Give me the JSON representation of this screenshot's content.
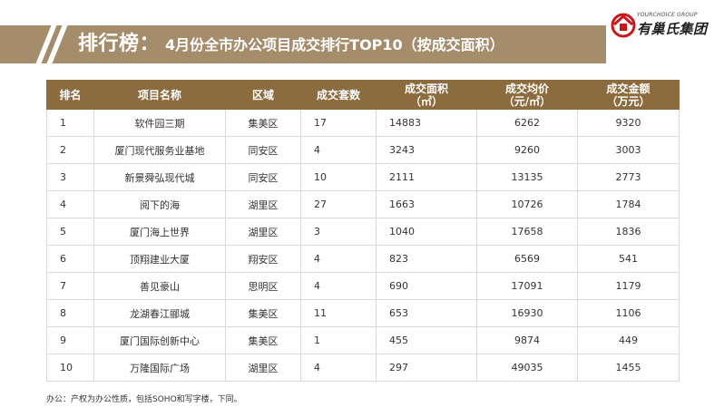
{
  "title": {
    "main": "排行榜：",
    "sub": "4月份全市办公项目成交排行TOP10（按成交面积）"
  },
  "logo": {
    "en": "YOURCHOICE GROUP",
    "cn": "有巢氏集团",
    "icon": "house-logo-icon",
    "color": "#c8181e"
  },
  "colors": {
    "title_bar": "#a58c6b",
    "table_header": "#8c6c3e"
  },
  "table": {
    "headers": [
      {
        "label": "排名"
      },
      {
        "label": "项目名称"
      },
      {
        "label": "区域"
      },
      {
        "label": "成交套数"
      },
      {
        "label": "成交面积",
        "unit": "（㎡）"
      },
      {
        "label": "成交均价",
        "unit": "（元/㎡）"
      },
      {
        "label": "成交金额",
        "unit": "（万元）"
      }
    ],
    "rows": [
      [
        "1",
        "软件园三期",
        "集美区",
        "17",
        "14883",
        "6262",
        "9320"
      ],
      [
        "2",
        "厦门现代服务业基地",
        "同安区",
        "4",
        "3243",
        "9260",
        "3003"
      ],
      [
        "3",
        "新景舜弘现代城",
        "同安区",
        "10",
        "2111",
        "13135",
        "2773"
      ],
      [
        "4",
        "阅下的海",
        "湖里区",
        "27",
        "1663",
        "10726",
        "1784"
      ],
      [
        "5",
        "厦门海上世界",
        "湖里区",
        "3",
        "1040",
        "17658",
        "1836"
      ],
      [
        "6",
        "顶翔建业大厦",
        "翔安区",
        "4",
        "823",
        "6569",
        "541"
      ],
      [
        "7",
        "善见豪山",
        "思明区",
        "4",
        "690",
        "17091",
        "1179"
      ],
      [
        "8",
        "龙湖春江郦城",
        "集美区",
        "11",
        "653",
        "16930",
        "1106"
      ],
      [
        "9",
        "厦门国际创新中心",
        "集美区",
        "1",
        "455",
        "9874",
        "449"
      ],
      [
        "10",
        "万隆国际广场",
        "湖里区",
        "4",
        "297",
        "49035",
        "1455"
      ]
    ]
  },
  "footnote": "办公：产权为办公性质，包括SOHO和写字楼，下同。"
}
